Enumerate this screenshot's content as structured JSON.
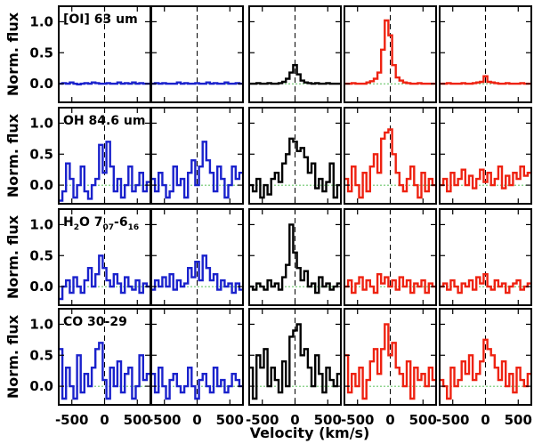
{
  "chart_data": {
    "type": "line",
    "style": "step",
    "xlabel": "Velocity (km/s)",
    "ylabel": "Norm. flux",
    "xlim": [
      -700,
      700
    ],
    "ylim": [
      -0.3,
      1.25
    ],
    "xticks": [
      -500,
      0,
      500
    ],
    "xtick_labels": [
      "-500",
      "0",
      "500"
    ],
    "yticks": [
      0.0,
      0.5,
      1.0
    ],
    "ytick_labels": [
      "0.0",
      "0.5",
      "1.0"
    ],
    "x_start": -700,
    "bin_width": 56,
    "vline_at": 0,
    "hline_at": 0,
    "column_colors": [
      "#1a22cc",
      "#1a22cc",
      "#000000",
      "#ee2211",
      "#ee2211"
    ],
    "rows": [
      {
        "label": "[OI] 63 um",
        "label_parts": [
          {
            "t": "[OI] 63 um",
            "sub": false
          }
        ],
        "series": [
          {
            "name": "col1",
            "values": [
              0.0,
              0.01,
              0.0,
              0.02,
              0.0,
              -0.01,
              0.0,
              0.01,
              0.0,
              0.02,
              0.01,
              0.0,
              0.0,
              0.01,
              0.0,
              0.0,
              0.02,
              0.0,
              0.01,
              0.0,
              0.02,
              0.0,
              0.01,
              0.0,
              0.0
            ]
          },
          {
            "name": "col2",
            "values": [
              0.0,
              0.01,
              0.0,
              0.01,
              0.0,
              0.0,
              0.0,
              0.02,
              0.0,
              0.01,
              0.0,
              0.0,
              0.01,
              0.0,
              0.0,
              0.02,
              0.0,
              0.01,
              0.0,
              0.0,
              0.02,
              0.0,
              0.0,
              0.01,
              0.0
            ]
          },
          {
            "name": "col3",
            "values": [
              0.0,
              0.0,
              0.01,
              0.0,
              0.0,
              0.01,
              0.0,
              0.0,
              0.01,
              0.03,
              0.08,
              0.18,
              0.3,
              0.15,
              0.05,
              0.02,
              0.01,
              0.0,
              0.01,
              0.0,
              0.0,
              0.01,
              0.0,
              0.0,
              0.0
            ]
          },
          {
            "name": "col4",
            "values": [
              0.0,
              0.0,
              0.01,
              0.0,
              0.0,
              0.0,
              0.02,
              0.04,
              0.08,
              0.18,
              0.55,
              1.02,
              0.78,
              0.3,
              0.1,
              0.05,
              0.02,
              0.01,
              0.0,
              0.0,
              0.01,
              0.0,
              0.0,
              0.0,
              0.0
            ]
          },
          {
            "name": "col5",
            "values": [
              0.0,
              0.0,
              0.01,
              0.0,
              0.0,
              0.0,
              0.01,
              0.0,
              0.0,
              0.01,
              0.02,
              0.03,
              0.12,
              0.03,
              0.02,
              0.01,
              0.0,
              0.0,
              0.01,
              0.0,
              0.0,
              0.0,
              0.01,
              0.0,
              0.0
            ]
          }
        ]
      },
      {
        "label": "OH 84.6 um",
        "label_parts": [
          {
            "t": "OH 84.6 um",
            "sub": false
          }
        ],
        "series": [
          {
            "name": "col1",
            "values": [
              -0.25,
              -0.1,
              0.35,
              0.1,
              -0.2,
              0.0,
              0.3,
              -0.1,
              -0.22,
              0.0,
              0.1,
              0.65,
              0.2,
              0.7,
              0.3,
              -0.1,
              0.1,
              -0.2,
              0.0,
              0.3,
              -0.1,
              0.0,
              0.2,
              -0.1,
              0.05
            ]
          },
          {
            "name": "col2",
            "values": [
              0.1,
              -0.1,
              0.2,
              0.0,
              -0.2,
              -0.1,
              0.3,
              0.0,
              0.1,
              -0.2,
              0.2,
              0.4,
              0.0,
              0.3,
              0.7,
              0.4,
              0.2,
              -0.1,
              0.3,
              0.1,
              -0.2,
              0.0,
              0.3,
              0.1,
              0.2
            ]
          },
          {
            "name": "col3",
            "values": [
              0.0,
              -0.1,
              0.1,
              -0.2,
              0.0,
              -0.15,
              0.1,
              0.2,
              0.05,
              0.35,
              0.5,
              0.75,
              0.7,
              0.55,
              0.6,
              0.45,
              0.2,
              0.35,
              -0.05,
              0.1,
              -0.1,
              0.05,
              0.35,
              -0.2,
              0.0
            ]
          },
          {
            "name": "col4",
            "values": [
              0.1,
              -0.1,
              0.3,
              0.0,
              -0.2,
              0.2,
              -0.1,
              0.3,
              0.5,
              0.2,
              0.75,
              0.85,
              0.9,
              0.5,
              0.2,
              0.0,
              -0.1,
              0.1,
              0.3,
              0.0,
              -0.2,
              0.2,
              -0.1,
              0.1,
              0.0
            ]
          },
          {
            "name": "col5",
            "values": [
              0.0,
              0.1,
              -0.1,
              0.2,
              0.0,
              0.1,
              0.25,
              0.0,
              0.15,
              -0.05,
              0.1,
              0.25,
              0.05,
              0.2,
              0.0,
              0.1,
              0.3,
              -0.05,
              0.15,
              0.0,
              0.2,
              0.1,
              0.3,
              0.15,
              0.2
            ]
          }
        ]
      },
      {
        "label": "H2O 7_07 - 6_16",
        "label_parts": [
          {
            "t": "H",
            "sub": false
          },
          {
            "t": "2",
            "sub": true
          },
          {
            "t": "O 7",
            "sub": false
          },
          {
            "t": "07",
            "sub": true
          },
          {
            "t": "-6",
            "sub": false
          },
          {
            "t": "16",
            "sub": true
          }
        ],
        "series": [
          {
            "name": "col1",
            "values": [
              -0.2,
              0.0,
              0.1,
              -0.1,
              0.15,
              0.0,
              -0.1,
              0.1,
              0.3,
              0.0,
              0.2,
              0.5,
              0.3,
              0.1,
              0.0,
              0.2,
              0.05,
              -0.1,
              0.15,
              0.0,
              -0.05,
              0.1,
              -0.1,
              0.05,
              0.0
            ]
          },
          {
            "name": "col2",
            "values": [
              -0.05,
              0.1,
              0.0,
              0.15,
              0.0,
              0.2,
              -0.05,
              0.1,
              0.0,
              0.05,
              0.3,
              0.15,
              0.4,
              0.1,
              0.5,
              0.3,
              0.1,
              0.2,
              -0.05,
              0.1,
              0.0,
              0.05,
              -0.1,
              0.05,
              -0.05
            ]
          },
          {
            "name": "col3",
            "values": [
              0.0,
              -0.05,
              0.05,
              0.0,
              -0.05,
              0.1,
              0.0,
              0.05,
              -0.05,
              0.15,
              0.35,
              1.0,
              0.55,
              0.3,
              0.1,
              0.25,
              0.0,
              0.05,
              -0.1,
              0.15,
              0.0,
              0.05,
              -0.05,
              0.0,
              0.05
            ]
          },
          {
            "name": "col4",
            "values": [
              0.0,
              0.1,
              -0.1,
              0.05,
              0.15,
              -0.05,
              0.1,
              0.0,
              -0.1,
              0.2,
              0.05,
              0.15,
              0.0,
              0.1,
              -0.05,
              0.15,
              0.0,
              0.1,
              -0.1,
              0.05,
              0.0,
              0.1,
              -0.1,
              0.05,
              0.0
            ]
          },
          {
            "name": "col5",
            "values": [
              0.0,
              0.05,
              -0.05,
              0.1,
              0.0,
              -0.1,
              0.05,
              0.0,
              0.1,
              -0.05,
              0.15,
              0.05,
              0.2,
              0.0,
              -0.05,
              0.1,
              0.0,
              0.05,
              -0.1,
              0.0,
              0.05,
              0.1,
              -0.05,
              0.0,
              0.05
            ]
          }
        ]
      },
      {
        "label": "CO 30-29",
        "label_parts": [
          {
            "t": "CO 30-29",
            "sub": false
          }
        ],
        "series": [
          {
            "name": "col1",
            "values": [
              0.6,
              -0.2,
              0.3,
              0.0,
              -0.2,
              0.5,
              -0.1,
              0.2,
              0.0,
              0.3,
              0.6,
              0.7,
              0.1,
              -0.2,
              0.3,
              0.0,
              0.4,
              -0.1,
              0.2,
              0.3,
              -0.2,
              0.0,
              0.5,
              0.1,
              0.2
            ]
          },
          {
            "name": "col2",
            "values": [
              0.2,
              -0.1,
              0.3,
              0.0,
              -0.2,
              0.1,
              0.2,
              0.0,
              -0.1,
              0.0,
              0.3,
              0.0,
              -0.2,
              0.1,
              0.2,
              0.0,
              -0.1,
              0.3,
              0.0,
              0.1,
              -0.1,
              0.0,
              0.2,
              0.1,
              0.0
            ]
          },
          {
            "name": "col3",
            "values": [
              0.3,
              -0.2,
              0.5,
              0.3,
              0.6,
              0.0,
              0.3,
              0.1,
              -0.1,
              0.4,
              0.0,
              0.8,
              0.9,
              1.0,
              0.5,
              0.6,
              0.3,
              0.0,
              0.5,
              0.2,
              -0.1,
              0.3,
              0.1,
              0.0,
              0.2
            ]
          },
          {
            "name": "col4",
            "values": [
              0.5,
              -0.1,
              0.2,
              0.0,
              0.3,
              -0.2,
              0.1,
              0.4,
              0.6,
              0.2,
              0.6,
              1.0,
              0.5,
              0.7,
              0.3,
              0.2,
              0.0,
              0.4,
              -0.2,
              0.3,
              0.1,
              0.2,
              0.0,
              0.3,
              0.1
            ]
          },
          {
            "name": "col5",
            "values": [
              0.1,
              0.0,
              -0.2,
              0.3,
              0.0,
              0.1,
              0.4,
              0.2,
              0.5,
              0.1,
              0.2,
              0.4,
              0.75,
              0.6,
              0.5,
              0.3,
              0.1,
              0.4,
              0.0,
              0.2,
              -0.1,
              0.3,
              0.1,
              0.0,
              0.2
            ]
          }
        ]
      }
    ]
  }
}
